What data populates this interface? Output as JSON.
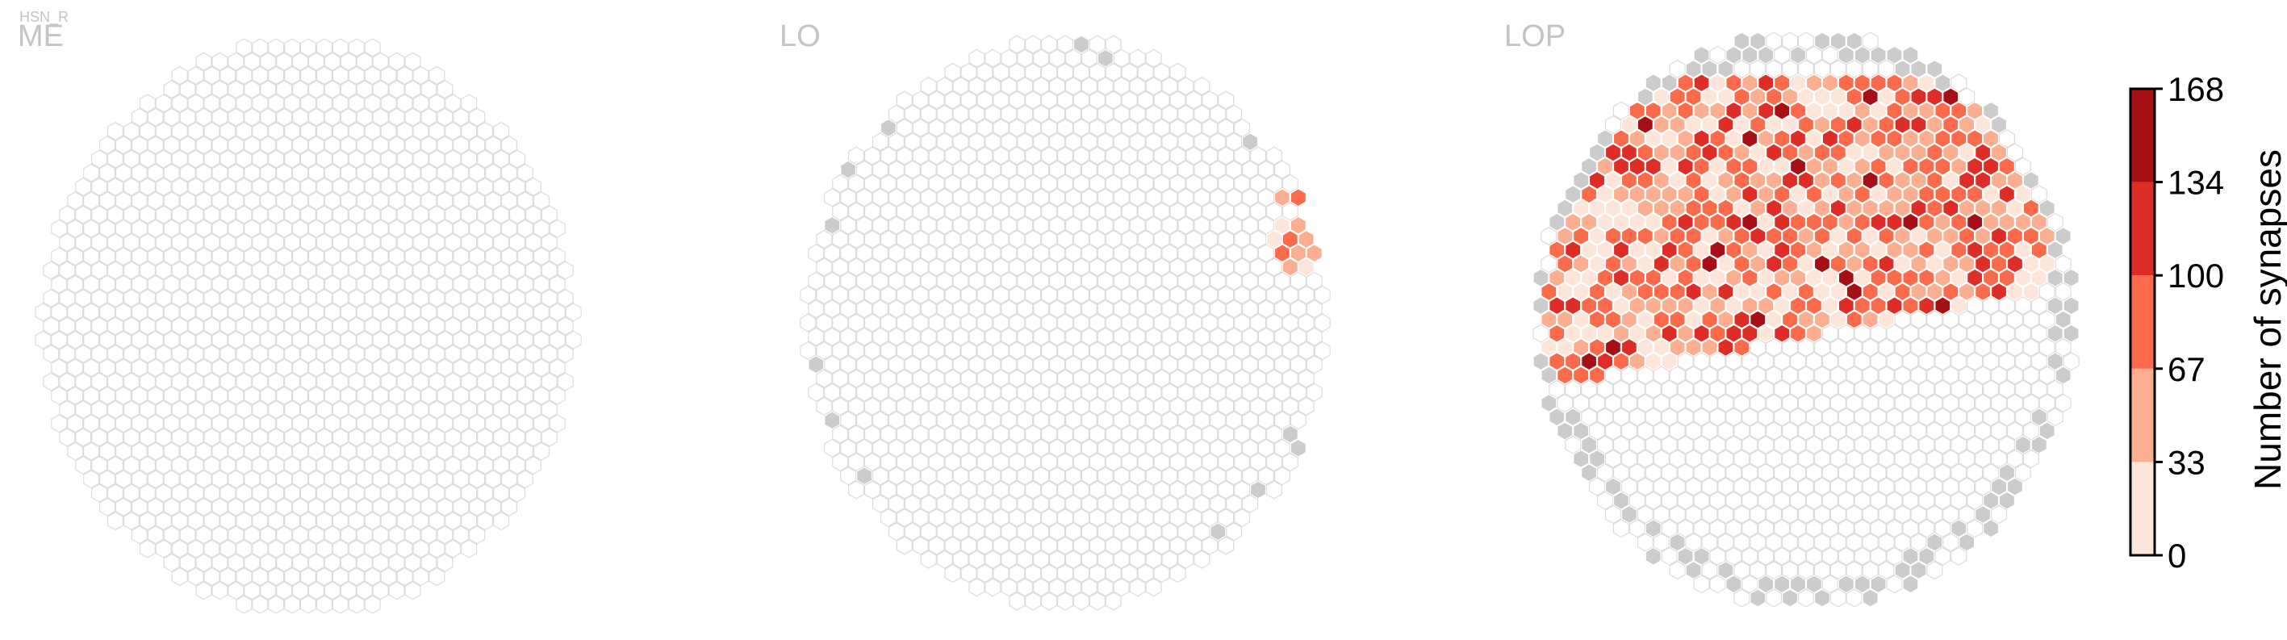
{
  "neuron_label": "HSN_R",
  "panels": [
    {
      "label": "ME"
    },
    {
      "label": "LO"
    },
    {
      "label": "LOP"
    }
  ],
  "colors": {
    "empty_fill": "#ffffff",
    "empty_stroke": "#dcdcdc",
    "no_data_gray": "#cccccc",
    "bins": [
      "#fee5d9",
      "#fcae91",
      "#fb6a4a",
      "#de2d26",
      "#a50f15"
    ]
  },
  "chart_data": {
    "type": "heatmap",
    "description_free": true,
    "colorbar": {
      "title": "Number of synapses",
      "ticks": [
        "168",
        "134",
        "100",
        "67",
        "33",
        "0"
      ],
      "range": [
        0,
        168
      ]
    },
    "panels": [
      {
        "name": "ME",
        "synapse_columns": 0
      },
      {
        "name": "LO",
        "synapse_columns": 8
      },
      {
        "name": "LOP",
        "synapse_columns": 240
      }
    ]
  }
}
